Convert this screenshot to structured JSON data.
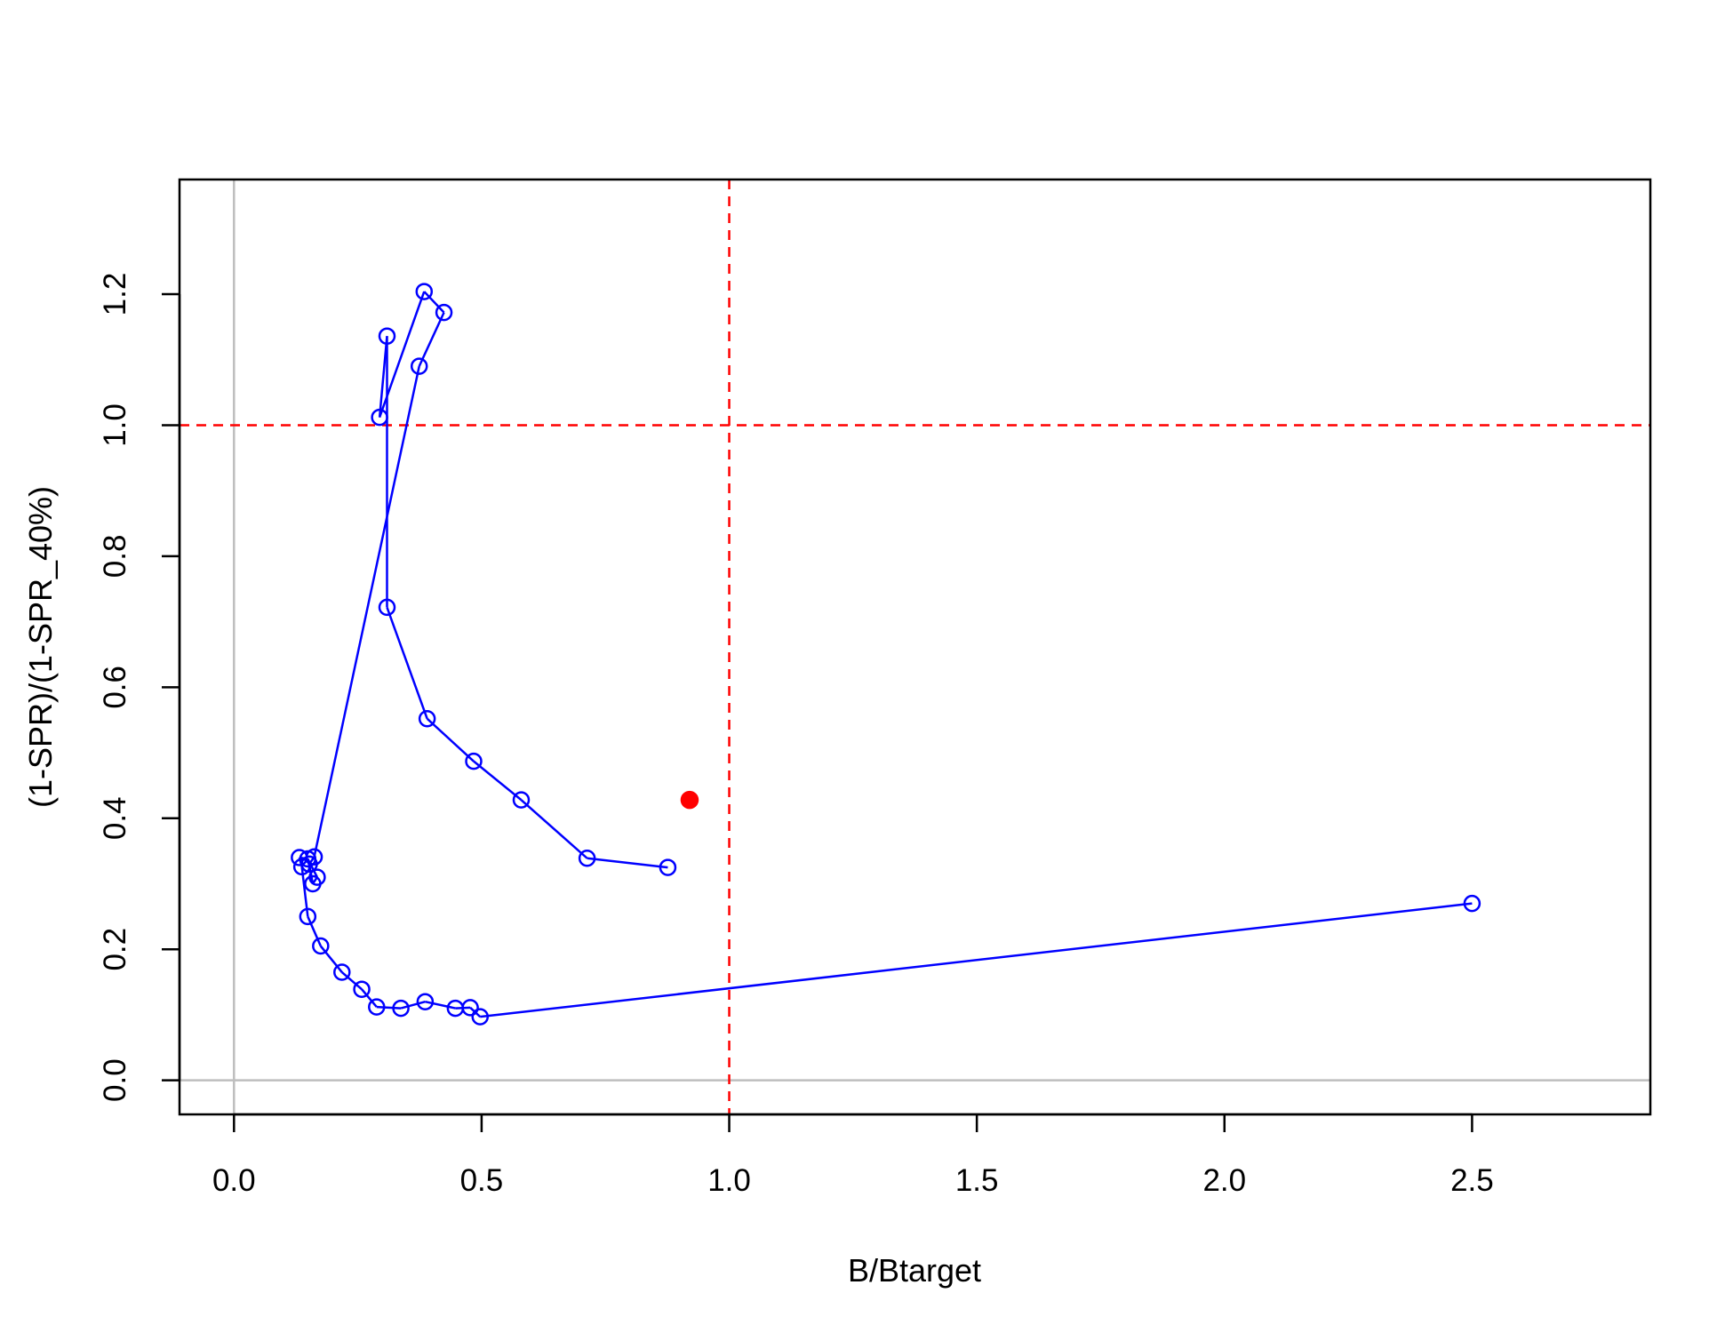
{
  "chart_data": {
    "type": "scatter",
    "title": "",
    "xlabel": "B/Btarget",
    "ylabel": "(1-SPR)/(1-SPR_40%)",
    "xlim": [
      -0.11,
      2.86
    ],
    "ylim": [
      -0.052,
      1.375
    ],
    "x_ticks": [
      0.0,
      0.5,
      1.0,
      1.5,
      2.0,
      2.5
    ],
    "y_ticks": [
      0.0,
      0.2,
      0.4,
      0.6,
      0.8,
      1.0,
      1.2
    ],
    "x_tick_labels": [
      "0.0",
      "0.5",
      "1.0",
      "1.5",
      "2.0",
      "2.5"
    ],
    "y_tick_labels": [
      "0.0",
      "0.2",
      "0.4",
      "0.6",
      "0.8",
      "1.0",
      "1.2"
    ],
    "grid": false,
    "reference_lines": {
      "zero_lines_color": "#bebebe",
      "target_color": "#ff0000",
      "target_x": 1.0,
      "target_y": 1.0
    },
    "series": [
      {
        "color": "#0000ff",
        "marker": "open-circle",
        "line": true,
        "x": [
          2.5,
          0.497,
          0.477,
          0.447,
          0.386,
          0.337,
          0.288,
          0.258,
          0.218,
          0.175,
          0.149,
          0.137,
          0.132,
          0.149,
          0.168,
          0.159,
          0.152,
          0.162,
          0.374,
          0.424,
          0.384,
          0.294,
          0.309,
          0.309,
          0.39,
          0.484,
          0.58,
          0.713,
          0.876
        ],
        "y": [
          0.27,
          0.097,
          0.111,
          0.11,
          0.12,
          0.11,
          0.112,
          0.139,
          0.165,
          0.205,
          0.25,
          0.326,
          0.34,
          0.338,
          0.31,
          0.3,
          0.33,
          0.341,
          1.09,
          1.172,
          1.204,
          1.012,
          1.136,
          0.722,
          0.552,
          0.487,
          0.428,
          0.339,
          0.325
        ]
      },
      {
        "color": "#ff0000",
        "marker": "filled-circle",
        "line": false,
        "x": [
          0.92
        ],
        "y": [
          0.428
        ]
      }
    ]
  }
}
